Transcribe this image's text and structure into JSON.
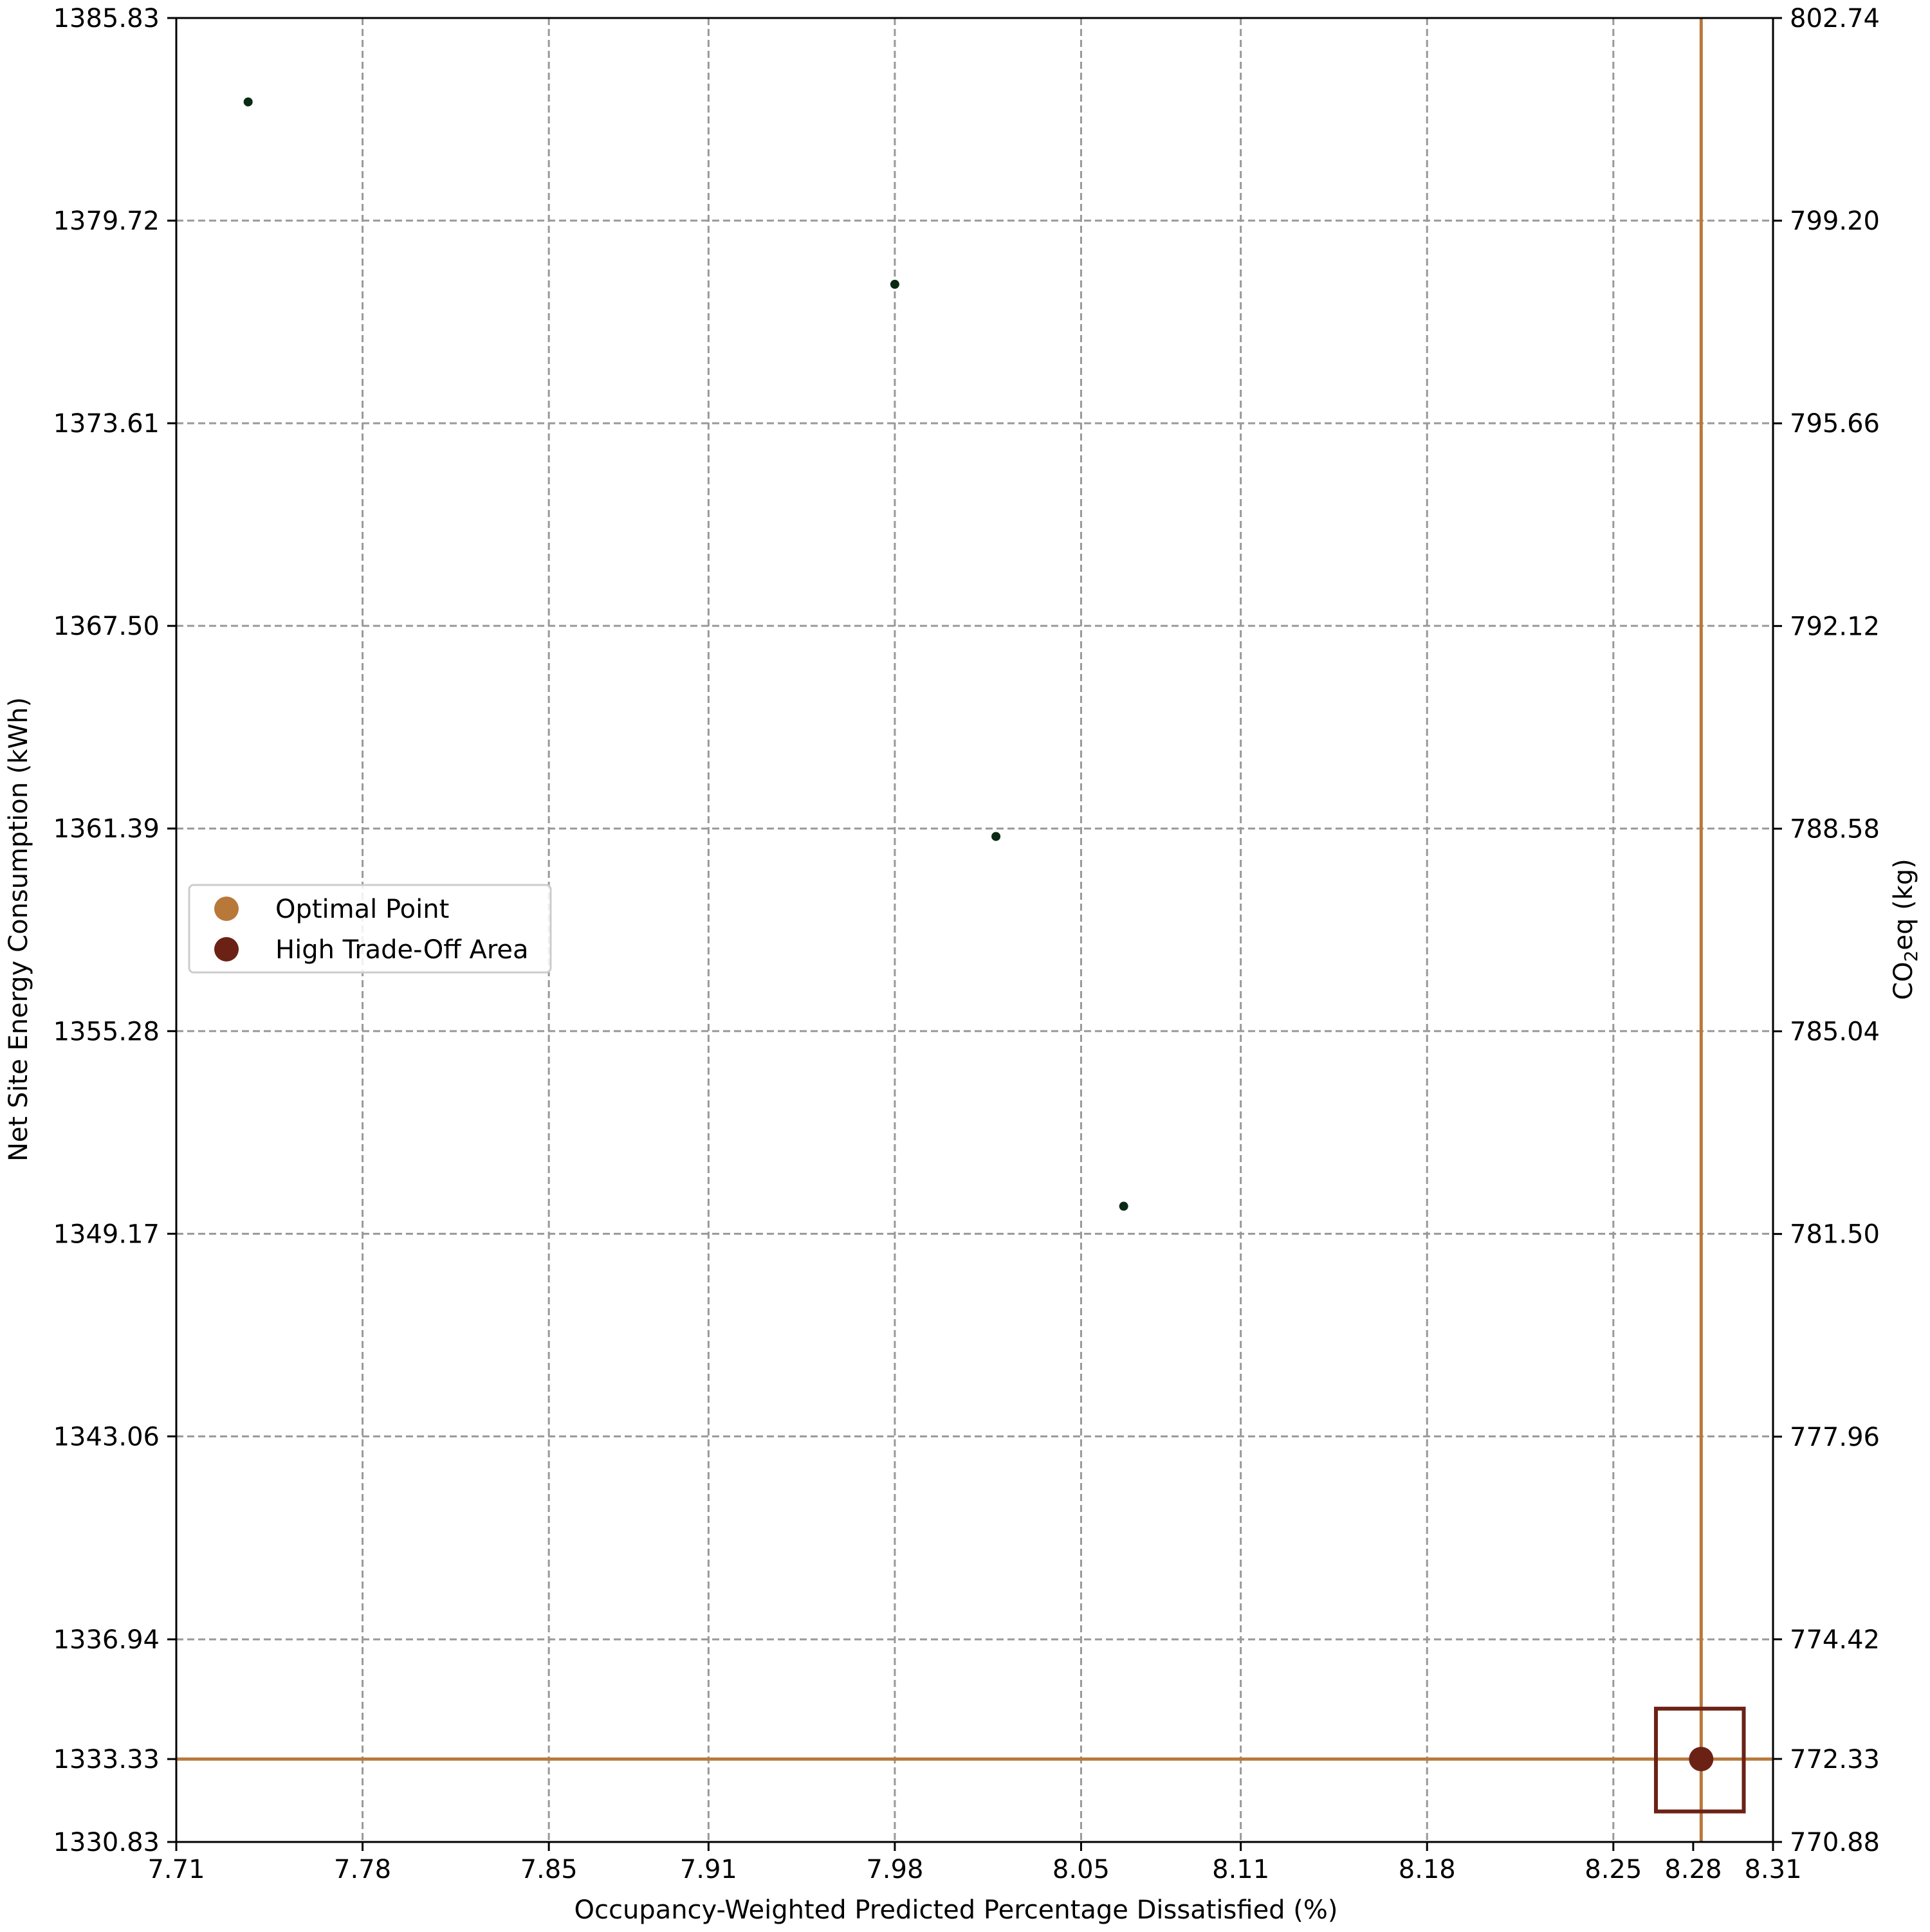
{
  "chart_data": {
    "type": "scatter",
    "title": "",
    "xlabel": "Occupancy-Weighted Predicted Percentage Dissatisfied (%)",
    "ylabel": "Net Site Energy Consumption (kWh)",
    "y2label_prefix": "CO",
    "y2label_sub": "2",
    "y2label_suffix": "eq (kg)",
    "xlim": [
      7.71,
      8.31
    ],
    "ylim": [
      1330.83,
      1385.83
    ],
    "y2lim": [
      770.88,
      802.74
    ],
    "x_ticks": [
      "7.71",
      "7.78",
      "7.85",
      "7.91",
      "7.98",
      "8.05",
      "8.11",
      "8.18",
      "8.25",
      "8.28",
      "8.31"
    ],
    "x_tick_values": [
      7.71,
      7.78,
      7.85,
      7.91,
      7.98,
      8.05,
      8.11,
      8.18,
      8.25,
      8.28,
      8.31
    ],
    "x_grid_values": [
      7.78,
      7.85,
      7.91,
      7.98,
      8.05,
      8.11,
      8.18,
      8.25
    ],
    "y_ticks": [
      "1330.83",
      "1333.33",
      "1336.94",
      "1343.06",
      "1349.17",
      "1355.28",
      "1361.39",
      "1367.50",
      "1373.61",
      "1379.72",
      "1385.83"
    ],
    "y_tick_values": [
      1330.83,
      1333.33,
      1336.94,
      1343.06,
      1349.17,
      1355.28,
      1361.39,
      1367.5,
      1373.61,
      1379.72,
      1385.83
    ],
    "y_grid_values": [
      1336.94,
      1343.06,
      1349.17,
      1355.28,
      1361.39,
      1367.5,
      1373.61,
      1379.72
    ],
    "y2_ticks": [
      "770.88",
      "772.33",
      "774.42",
      "777.96",
      "781.50",
      "785.04",
      "788.58",
      "792.12",
      "795.66",
      "799.20",
      "802.74"
    ],
    "y2_tick_values": [
      770.88,
      772.33,
      774.42,
      777.96,
      781.5,
      785.04,
      788.58,
      792.12,
      795.66,
      799.2,
      802.74
    ],
    "grid": true,
    "legend_position": "center-left",
    "series": [
      {
        "name": "",
        "color": "#0b2a14",
        "points": [
          {
            "x": 7.737,
            "y": 1383.3
          },
          {
            "x": 7.98,
            "y": 1377.8
          },
          {
            "x": 8.018,
            "y": 1361.15
          },
          {
            "x": 8.066,
            "y": 1350.0
          }
        ]
      }
    ],
    "optimal_point": {
      "name": "Optimal Point",
      "x": 8.283,
      "y": 1333.33,
      "color": "#b8783a"
    },
    "high_tradeoff_area": {
      "name": "High Trade-Off Area",
      "x": 8.283,
      "y": 1333.33,
      "color": "#6b2215",
      "box_x": [
        8.266,
        8.299
      ],
      "box_y": [
        1331.75,
        1334.85
      ]
    },
    "legend": [
      {
        "label": "Optimal Point",
        "color": "#b8783a"
      },
      {
        "label": "High Trade-Off Area",
        "color": "#6b2215"
      }
    ]
  }
}
